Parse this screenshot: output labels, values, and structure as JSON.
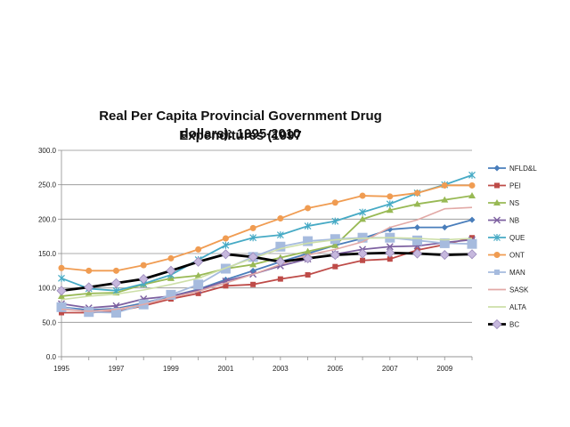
{
  "chart_data": {
    "type": "line",
    "title_line1": "Real Per Capita Provincial Government Drug Expenditures (1997",
    "title_line2": "dollars): 1995-2010",
    "xlabel": "",
    "ylabel": "",
    "xlim": [
      1995,
      2010
    ],
    "ylim": [
      0,
      300
    ],
    "yticks": [
      "0.0",
      "50.0",
      "100.0",
      "150.0",
      "200.0",
      "250.0",
      "300.0"
    ],
    "xticks": [
      "1995",
      "1997",
      "1999",
      "2001",
      "2003",
      "2005",
      "2007",
      "2009"
    ],
    "x": [
      1995,
      1996,
      1997,
      1998,
      1999,
      2000,
      2001,
      2002,
      2003,
      2004,
      2005,
      2006,
      2007,
      2008,
      2009,
      2010
    ],
    "legend_position": "right",
    "series": [
      {
        "name": "NFLD&L",
        "color": "#4a7ebb",
        "marker": "diamond",
        "values": [
          72,
          68,
          70,
          78,
          88,
          98,
          112,
          125,
          138,
          150,
          162,
          172,
          185,
          188,
          188,
          199
        ]
      },
      {
        "name": "PEI",
        "color": "#be4b48",
        "marker": "square",
        "values": [
          64,
          64,
          66,
          74,
          84,
          92,
          103,
          105,
          113,
          119,
          131,
          140,
          142,
          155,
          163,
          173
        ]
      },
      {
        "name": "NS",
        "color": "#98b954",
        "marker": "triangle",
        "values": [
          88,
          92,
          93,
          105,
          114,
          118,
          128,
          134,
          144,
          153,
          162,
          200,
          213,
          222,
          228,
          234
        ]
      },
      {
        "name": "NB",
        "color": "#7d60a0",
        "marker": "x",
        "values": [
          77,
          71,
          74,
          84,
          88,
          97,
          110,
          120,
          132,
          142,
          149,
          156,
          160,
          161,
          166,
          170
        ]
      },
      {
        "name": "QUE",
        "color": "#46aac5",
        "marker": "star",
        "values": [
          114,
          99,
          96,
          106,
          119,
          141,
          162,
          173,
          177,
          190,
          197,
          210,
          222,
          238,
          250,
          264
        ]
      },
      {
        "name": "ONT",
        "color": "#f09c52",
        "marker": "circle",
        "values": [
          129,
          125,
          125,
          133,
          143,
          156,
          172,
          187,
          201,
          216,
          224,
          234,
          233,
          238,
          249,
          249
        ]
      },
      {
        "name": "MAN",
        "color": "#a6bbde",
        "marker": "square-large",
        "values": [
          72,
          65,
          64,
          76,
          90,
          105,
          128,
          145,
          160,
          168,
          171,
          173,
          173,
          169,
          165,
          164
        ]
      },
      {
        "name": "SASK",
        "color": "#e2a9a6",
        "marker": "none",
        "values": [
          69,
          66,
          69,
          76,
          86,
          95,
          107,
          120,
          134,
          148,
          156,
          167,
          188,
          199,
          215,
          217
        ]
      },
      {
        "name": "ALTA",
        "color": "#cddfa8",
        "marker": "none",
        "values": [
          83,
          88,
          91,
          97,
          105,
          114,
          129,
          143,
          157,
          165,
          170,
          172,
          173,
          172,
          170,
          172
        ]
      },
      {
        "name": "BC",
        "color": "#000000",
        "marker": "diamond-big",
        "values": [
          96,
          101,
          107,
          113,
          125,
          138,
          149,
          145,
          138,
          143,
          148,
          150,
          151,
          150,
          148,
          149
        ]
      }
    ]
  }
}
